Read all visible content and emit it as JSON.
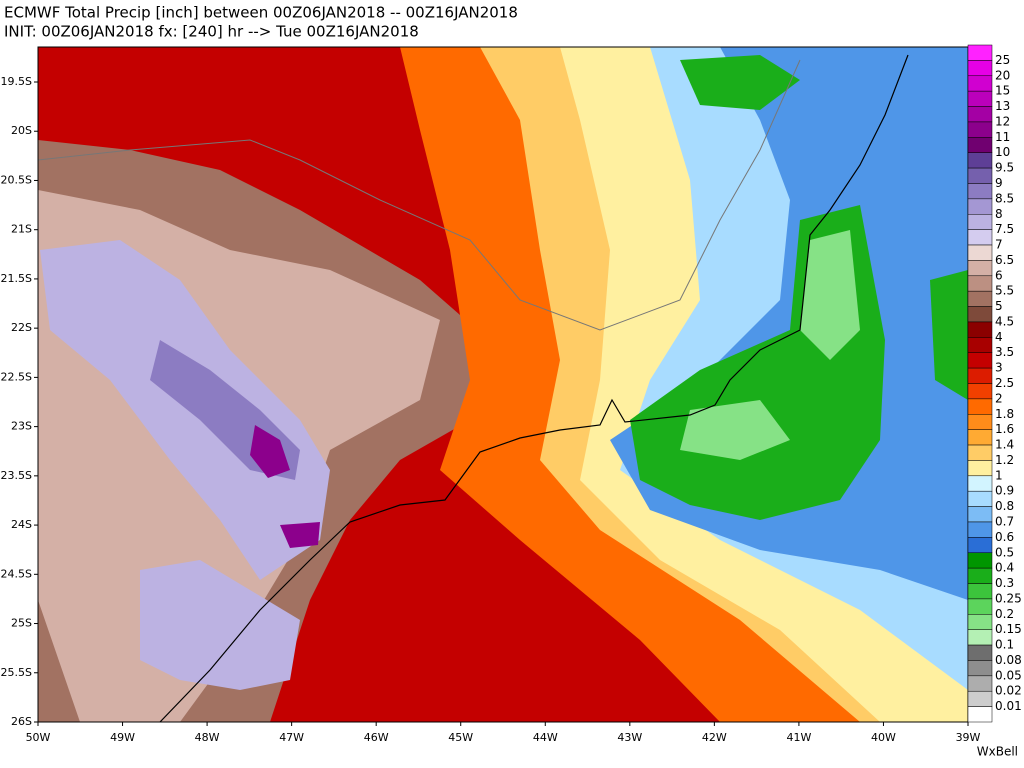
{
  "header": {
    "title_line1": "ECMWF Total Precip [inch] between 00Z06JAN2018 -- 00Z16JAN2018",
    "title_line2": "INIT: 00Z06JAN2018 fx: [240] hr --> Tue 00Z16JAN2018"
  },
  "map": {
    "lat_labels": [
      "19.5S",
      "20S",
      "20.5S",
      "21S",
      "21.5S",
      "22S",
      "22.5S",
      "23S",
      "23.5S",
      "24S",
      "24.5S",
      "25S",
      "25.5S",
      "26S"
    ],
    "lon_labels": [
      "50W",
      "49W",
      "48W",
      "47W",
      "46W",
      "45W",
      "44W",
      "43W",
      "42W",
      "41W",
      "40W",
      "39W"
    ]
  },
  "colorbar": {
    "labels": [
      "25",
      "20",
      "15",
      "13",
      "12",
      "11",
      "10",
      "9.5",
      "9",
      "8.5",
      "8",
      "7.5",
      "7",
      "6.5",
      "6",
      "5.5",
      "5",
      "4.5",
      "4",
      "3.5",
      "3",
      "2.5",
      "2",
      "1.8",
      "1.6",
      "1.4",
      "1.2",
      "1",
      "0.9",
      "0.8",
      "0.7",
      "0.6",
      "0.5",
      "0.4",
      "0.3",
      "0.25",
      "0.2",
      "0.15",
      "0.1",
      "0.08",
      "0.05",
      "0.02",
      "0.01"
    ],
    "colors": [
      "#ff22ff",
      "#e600e6",
      "#d000d0",
      "#bb00bb",
      "#a400a4",
      "#8c008c",
      "#700070",
      "#5e3f96",
      "#7560ad",
      "#8c7cc2",
      "#a497d3",
      "#bcb2e2",
      "#d4ccef",
      "#ecd8d3",
      "#d4b0a6",
      "#bc9082",
      "#a27262",
      "#7e4a3a",
      "#8b0000",
      "#a80000",
      "#c40000",
      "#dc1c00",
      "#f24000",
      "#ff6a00",
      "#ff8c1a",
      "#ffaa33",
      "#ffcc66",
      "#fff0a0",
      "#d2f4ff",
      "#a8dcff",
      "#7cbcf5",
      "#4f96e8",
      "#2a6ed6",
      "#009600",
      "#1aae1a",
      "#3cc43c",
      "#5cd45c",
      "#86e286",
      "#b4f0b4",
      "#6e6e6e",
      "#8e8e8e",
      "#adadad",
      "#cdcdcd",
      "#ffffff"
    ]
  },
  "credit": "WxBell"
}
